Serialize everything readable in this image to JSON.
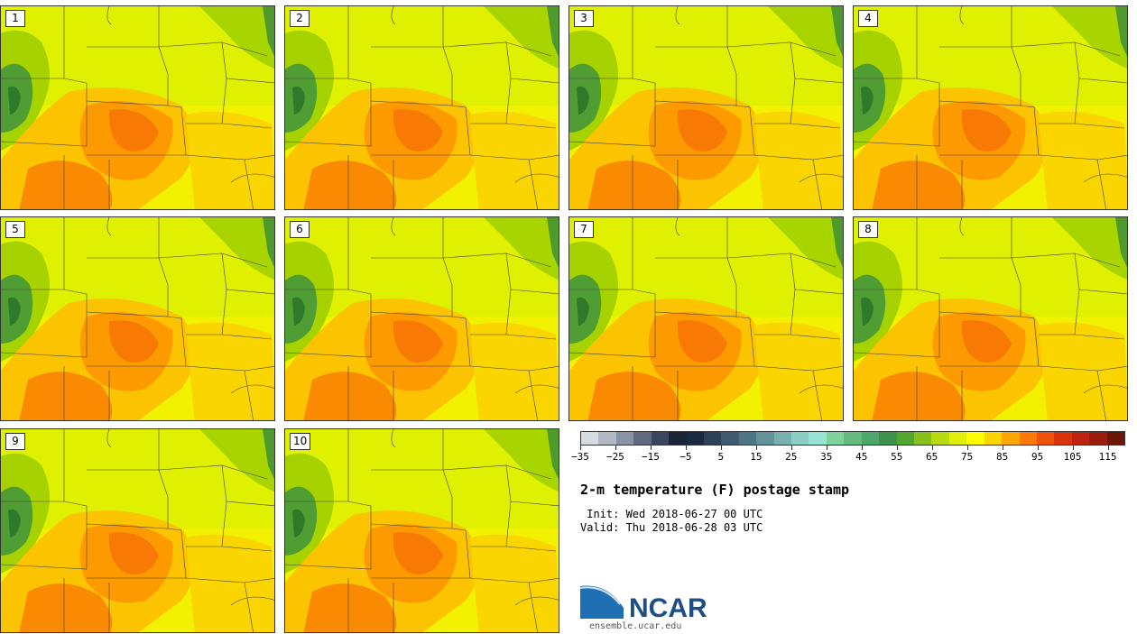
{
  "title": "2-m temperature (F) postage stamp",
  "init_line": " Init: Wed 2018-06-27 00 UTC",
  "valid_line": "Valid: Thu 2018-06-28 03 UTC",
  "logo_text": "NCAR",
  "site": "ensemble.ucar.edu",
  "members": [
    "1",
    "2",
    "3",
    "4",
    "5",
    "6",
    "7",
    "8",
    "9",
    "10"
  ],
  "colorbar": {
    "ticks": [
      "−35",
      "−25",
      "−15",
      "−5",
      "5",
      "15",
      "25",
      "35",
      "45",
      "55",
      "65",
      "75",
      "85",
      "95",
      "105",
      "115"
    ],
    "colors": [
      "#d6dbe2",
      "#b3b9c4",
      "#8a93a4",
      "#5f6a80",
      "#3a4560",
      "#1b2438",
      "#1a2940",
      "#2b4257",
      "#3e5b70",
      "#4f7585",
      "#63929b",
      "#79b0b0",
      "#8ccdc6",
      "#98e3d3",
      "#7fd19e",
      "#66bc7f",
      "#4ea76a",
      "#3e924b",
      "#54a72e",
      "#86c21b",
      "#b7db10",
      "#dfee0a",
      "#fbfd00",
      "#fcd500",
      "#fca600",
      "#fa7a05",
      "#ee520a",
      "#d9330c",
      "#bb2510",
      "#9a1c0e",
      "#6f1508"
    ]
  }
}
